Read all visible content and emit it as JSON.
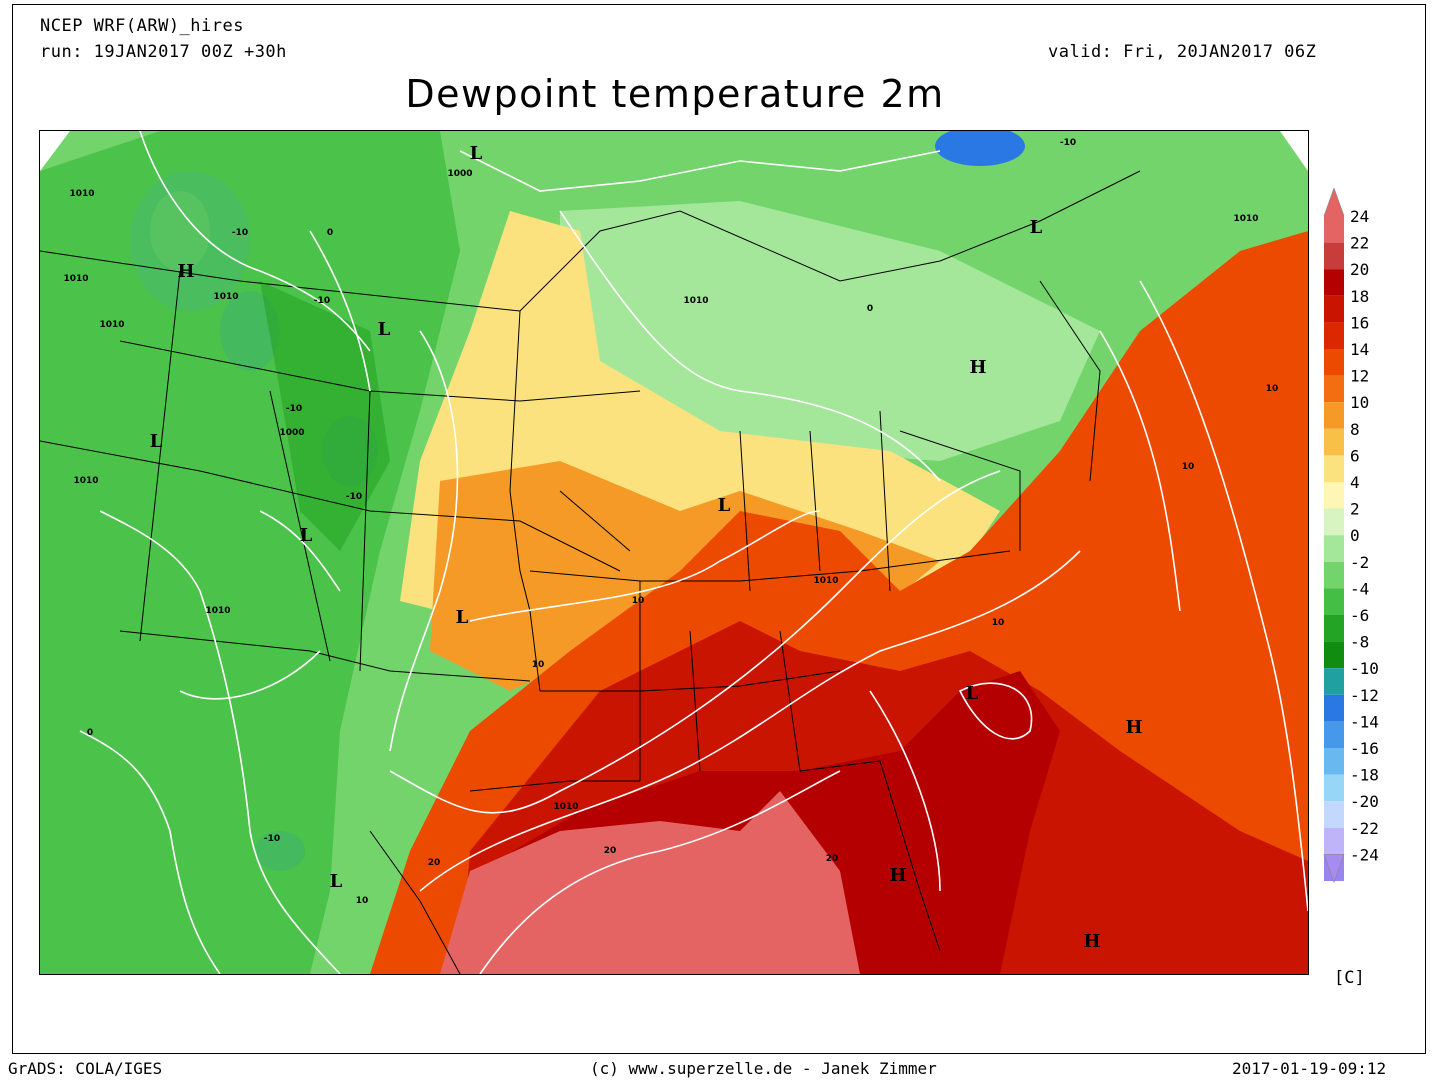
{
  "header": {
    "model": "NCEP WRF(ARW)_hires",
    "run": "run: 19JAN2017 00Z +30h",
    "valid": "valid: Fri, 20JAN2017 06Z",
    "title": "Dewpoint temperature 2m"
  },
  "colorbar": {
    "unit": "[C]",
    "levels": [
      "24",
      "22",
      "20",
      "18",
      "16",
      "14",
      "12",
      "10",
      "8",
      "6",
      "4",
      "2",
      "0",
      "-2",
      "-4",
      "-6",
      "-8",
      "-10",
      "-12",
      "-14",
      "-16",
      "-18",
      "-20",
      "-22",
      "-24"
    ],
    "colors": [
      "#e46464",
      "#c83c3c",
      "#b40000",
      "#c81400",
      "#dc2800",
      "#ec4a00",
      "#f26e10",
      "#f59a26",
      "#f8c046",
      "#fbe27e",
      "#fdf6b4",
      "#d8f4c0",
      "#a4e69a",
      "#74d46c",
      "#44be44",
      "#24a424",
      "#108c10",
      "#20a0a0",
      "#2a78e4",
      "#4698ea",
      "#6ab8f0",
      "#98d6f8",
      "#c2d8fc",
      "#c0b4f8",
      "#9a84f0"
    ],
    "top_arrow_color": "#e46464",
    "bottom_arrow_color": "#a78af2"
  },
  "map": {
    "pressure_labels": [
      {
        "text": "L"
      },
      {
        "text": "L"
      },
      {
        "text": "L"
      },
      {
        "text": "L"
      },
      {
        "text": "L"
      },
      {
        "text": "L"
      },
      {
        "text": "L"
      },
      {
        "text": "L"
      },
      {
        "text": "L"
      },
      {
        "text": "H"
      },
      {
        "text": "H"
      },
      {
        "text": "H"
      },
      {
        "text": "H"
      },
      {
        "text": "H"
      }
    ],
    "contour_labels": [
      {
        "text": "1010"
      },
      {
        "text": "1000"
      },
      {
        "text": "1010"
      },
      {
        "text": "1010"
      },
      {
        "text": "1010"
      },
      {
        "text": "1010"
      },
      {
        "text": "1000"
      },
      {
        "text": "1010"
      },
      {
        "text": "1010"
      },
      {
        "text": "1010"
      },
      {
        "text": "1010"
      },
      {
        "text": "1010"
      },
      {
        "text": "-10"
      },
      {
        "text": "-10"
      },
      {
        "text": "-10"
      },
      {
        "text": "-10"
      },
      {
        "text": "-10"
      },
      {
        "text": "-10"
      },
      {
        "text": "10"
      },
      {
        "text": "10"
      },
      {
        "text": "10"
      },
      {
        "text": "10"
      },
      {
        "text": "10"
      },
      {
        "text": "10"
      },
      {
        "text": "20"
      },
      {
        "text": "20"
      },
      {
        "text": "20"
      },
      {
        "text": "0"
      },
      {
        "text": "0"
      },
      {
        "text": "0"
      }
    ]
  },
  "footer": {
    "left": "GrADS: COLA/IGES",
    "center": "(c) www.superzelle.de - Janek Zimmer",
    "right": "2017-01-19-09:12"
  }
}
